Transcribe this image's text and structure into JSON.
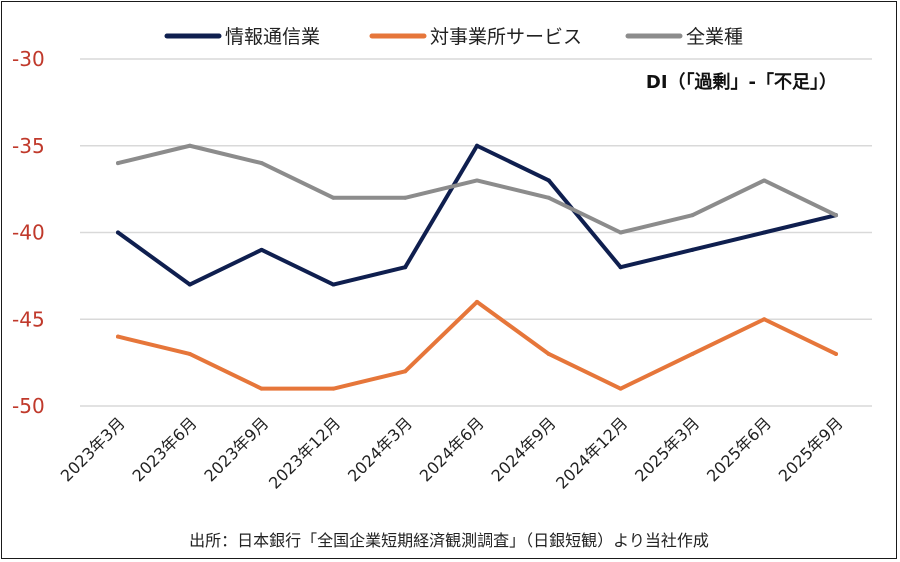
{
  "chart_data": {
    "type": "line",
    "title": "",
    "annotation": "DI（「過剰」-「不足」）",
    "source": "出所：日本銀行「全国企業短期経済観測調査」（日銀短観）より当社作成",
    "categories": [
      "2023年3月",
      "2023年6月",
      "2023年9月",
      "2023年12月",
      "2024年3月",
      "2024年6月",
      "2024年9月",
      "2024年12月",
      "2025年3月",
      "2025年6月",
      "2025年9月"
    ],
    "ylim": [
      -50,
      -30
    ],
    "yticks": [
      -30,
      -35,
      -40,
      -45,
      -50
    ],
    "grid": true,
    "legend_position": "top",
    "series": [
      {
        "name": "情報通信業",
        "color": "#0f1f4f",
        "values": [
          -40,
          -43,
          -41,
          -43,
          -42,
          -35,
          -37,
          -42,
          -41,
          -40,
          -39
        ]
      },
      {
        "name": "対事業所サービス",
        "color": "#e6763a",
        "values": [
          -46,
          -47,
          -49,
          -49,
          -48,
          -44,
          -47,
          -49,
          -47,
          -45,
          -47
        ]
      },
      {
        "name": "全業種",
        "color": "#8c8c8c",
        "values": [
          -36,
          -35,
          -36,
          -38,
          -38,
          -37,
          -38,
          -40,
          -39,
          -37,
          -39
        ]
      }
    ]
  }
}
